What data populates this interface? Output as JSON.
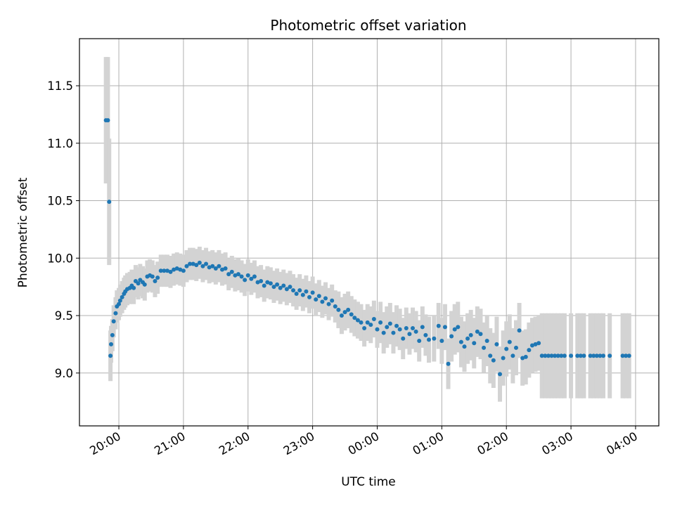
{
  "chart_data": {
    "type": "scatter",
    "title": "Photometric offset variation",
    "xlabel": "UTC time",
    "ylabel": "Photometric offset",
    "x_unit": "hours (UTC, continuing past midnight: 24 = 00:00 next day)",
    "xlim": [
      19.39,
      28.36
    ],
    "ylim": [
      8.54,
      11.91
    ],
    "x_ticks": [
      20,
      21,
      22,
      23,
      24,
      25,
      26,
      27,
      28
    ],
    "x_tick_labels": [
      "20:00",
      "21:00",
      "22:00",
      "23:00",
      "00:00",
      "01:00",
      "02:00",
      "03:00",
      "04:00"
    ],
    "y_ticks": [
      9.0,
      9.5,
      10.0,
      10.5,
      11.0,
      11.5
    ],
    "y_tick_labels": [
      "9.0",
      "9.5",
      "10.0",
      "10.5",
      "11.0",
      "11.5"
    ],
    "grid": true,
    "colors": {
      "points": "#1f77b4",
      "error_bars": "#d3d3d3"
    },
    "series": [
      {
        "values_note": "each point: [x_hours, y, y_error]",
        "points": [
          [
            19.8,
            11.2,
            0.55
          ],
          [
            19.83,
            11.2,
            0.55
          ],
          [
            19.85,
            10.49,
            0.55
          ],
          [
            19.87,
            9.15,
            0.22
          ],
          [
            19.88,
            9.25,
            0.16
          ],
          [
            19.9,
            9.33,
            0.14
          ],
          [
            19.92,
            9.45,
            0.14
          ],
          [
            19.95,
            9.52,
            0.14
          ],
          [
            19.97,
            9.58,
            0.14
          ],
          [
            20.0,
            9.6,
            0.14
          ],
          [
            20.02,
            9.63,
            0.14
          ],
          [
            20.05,
            9.66,
            0.14
          ],
          [
            20.08,
            9.69,
            0.14
          ],
          [
            20.1,
            9.71,
            0.14
          ],
          [
            20.13,
            9.73,
            0.14
          ],
          [
            20.17,
            9.74,
            0.14
          ],
          [
            20.2,
            9.76,
            0.14
          ],
          [
            20.23,
            9.74,
            0.14
          ],
          [
            20.26,
            9.8,
            0.14
          ],
          [
            20.3,
            9.78,
            0.14
          ],
          [
            20.33,
            9.81,
            0.14
          ],
          [
            20.37,
            9.79,
            0.14
          ],
          [
            20.4,
            9.77,
            0.14
          ],
          [
            20.44,
            9.84,
            0.14
          ],
          [
            20.48,
            9.85,
            0.14
          ],
          [
            20.52,
            9.84,
            0.14
          ],
          [
            20.56,
            9.8,
            0.14
          ],
          [
            20.6,
            9.83,
            0.14
          ],
          [
            20.65,
            9.89,
            0.14
          ],
          [
            20.7,
            9.89,
            0.14
          ],
          [
            20.75,
            9.89,
            0.14
          ],
          [
            20.8,
            9.88,
            0.14
          ],
          [
            20.85,
            9.9,
            0.14
          ],
          [
            20.9,
            9.91,
            0.14
          ],
          [
            20.95,
            9.9,
            0.14
          ],
          [
            21.0,
            9.89,
            0.14
          ],
          [
            21.05,
            9.93,
            0.14
          ],
          [
            21.1,
            9.95,
            0.14
          ],
          [
            21.15,
            9.95,
            0.14
          ],
          [
            21.2,
            9.94,
            0.14
          ],
          [
            21.25,
            9.96,
            0.14
          ],
          [
            21.3,
            9.93,
            0.14
          ],
          [
            21.35,
            9.95,
            0.14
          ],
          [
            21.4,
            9.92,
            0.14
          ],
          [
            21.45,
            9.93,
            0.14
          ],
          [
            21.5,
            9.91,
            0.14
          ],
          [
            21.55,
            9.93,
            0.14
          ],
          [
            21.6,
            9.9,
            0.14
          ],
          [
            21.65,
            9.91,
            0.14
          ],
          [
            21.7,
            9.86,
            0.14
          ],
          [
            21.75,
            9.88,
            0.14
          ],
          [
            21.8,
            9.85,
            0.14
          ],
          [
            21.85,
            9.86,
            0.14
          ],
          [
            21.9,
            9.84,
            0.14
          ],
          [
            21.95,
            9.81,
            0.14
          ],
          [
            22.0,
            9.85,
            0.14
          ],
          [
            22.05,
            9.82,
            0.14
          ],
          [
            22.1,
            9.84,
            0.14
          ],
          [
            22.15,
            9.79,
            0.14
          ],
          [
            22.2,
            9.8,
            0.14
          ],
          [
            22.25,
            9.76,
            0.14
          ],
          [
            22.3,
            9.79,
            0.14
          ],
          [
            22.35,
            9.78,
            0.14
          ],
          [
            22.4,
            9.75,
            0.14
          ],
          [
            22.45,
            9.77,
            0.14
          ],
          [
            22.5,
            9.74,
            0.14
          ],
          [
            22.55,
            9.76,
            0.14
          ],
          [
            22.6,
            9.73,
            0.14
          ],
          [
            22.65,
            9.75,
            0.14
          ],
          [
            22.7,
            9.72,
            0.14
          ],
          [
            22.75,
            9.69,
            0.14
          ],
          [
            22.8,
            9.72,
            0.14
          ],
          [
            22.85,
            9.68,
            0.14
          ],
          [
            22.9,
            9.71,
            0.14
          ],
          [
            22.95,
            9.66,
            0.14
          ],
          [
            23.0,
            9.7,
            0.14
          ],
          [
            23.05,
            9.64,
            0.14
          ],
          [
            23.1,
            9.67,
            0.14
          ],
          [
            23.15,
            9.62,
            0.14
          ],
          [
            23.2,
            9.65,
            0.14
          ],
          [
            23.25,
            9.6,
            0.14
          ],
          [
            23.3,
            9.63,
            0.14
          ],
          [
            23.35,
            9.58,
            0.14
          ],
          [
            23.4,
            9.55,
            0.16
          ],
          [
            23.45,
            9.5,
            0.16
          ],
          [
            23.5,
            9.53,
            0.16
          ],
          [
            23.55,
            9.55,
            0.16
          ],
          [
            23.6,
            9.51,
            0.16
          ],
          [
            23.65,
            9.48,
            0.16
          ],
          [
            23.7,
            9.46,
            0.16
          ],
          [
            23.75,
            9.44,
            0.16
          ],
          [
            23.8,
            9.39,
            0.16
          ],
          [
            23.85,
            9.44,
            0.16
          ],
          [
            23.9,
            9.42,
            0.16
          ],
          [
            23.95,
            9.47,
            0.16
          ],
          [
            24.0,
            9.38,
            0.16
          ],
          [
            24.05,
            9.44,
            0.18
          ],
          [
            24.1,
            9.35,
            0.18
          ],
          [
            24.15,
            9.4,
            0.18
          ],
          [
            24.2,
            9.43,
            0.18
          ],
          [
            24.25,
            9.35,
            0.18
          ],
          [
            24.3,
            9.41,
            0.18
          ],
          [
            24.35,
            9.38,
            0.18
          ],
          [
            24.4,
            9.3,
            0.18
          ],
          [
            24.45,
            9.39,
            0.18
          ],
          [
            24.5,
            9.34,
            0.18
          ],
          [
            24.55,
            9.39,
            0.18
          ],
          [
            24.6,
            9.36,
            0.18
          ],
          [
            24.65,
            9.28,
            0.18
          ],
          [
            24.7,
            9.4,
            0.18
          ],
          [
            24.75,
            9.33,
            0.18
          ],
          [
            24.8,
            9.29,
            0.2
          ],
          [
            24.88,
            9.3,
            0.2
          ],
          [
            24.95,
            9.41,
            0.2
          ],
          [
            25.0,
            9.28,
            0.2
          ],
          [
            25.05,
            9.4,
            0.2
          ],
          [
            25.1,
            9.08,
            0.22
          ],
          [
            25.15,
            9.32,
            0.22
          ],
          [
            25.2,
            9.38,
            0.22
          ],
          [
            25.25,
            9.4,
            0.22
          ],
          [
            25.3,
            9.27,
            0.22
          ],
          [
            25.35,
            9.23,
            0.22
          ],
          [
            25.4,
            9.3,
            0.22
          ],
          [
            25.45,
            9.33,
            0.22
          ],
          [
            25.5,
            9.26,
            0.22
          ],
          [
            25.55,
            9.36,
            0.22
          ],
          [
            25.6,
            9.34,
            0.22
          ],
          [
            25.65,
            9.22,
            0.22
          ],
          [
            25.7,
            9.28,
            0.22
          ],
          [
            25.75,
            9.15,
            0.24
          ],
          [
            25.8,
            9.11,
            0.24
          ],
          [
            25.85,
            9.25,
            0.24
          ],
          [
            25.9,
            8.99,
            0.24
          ],
          [
            25.95,
            9.13,
            0.24
          ],
          [
            26.0,
            9.21,
            0.24
          ],
          [
            26.05,
            9.27,
            0.24
          ],
          [
            26.1,
            9.15,
            0.24
          ],
          [
            26.15,
            9.22,
            0.24
          ],
          [
            26.2,
            9.37,
            0.24
          ],
          [
            26.25,
            9.13,
            0.24
          ],
          [
            26.3,
            9.14,
            0.24
          ],
          [
            26.35,
            9.2,
            0.24
          ],
          [
            26.4,
            9.24,
            0.24
          ],
          [
            26.45,
            9.25,
            0.24
          ],
          [
            26.5,
            9.26,
            0.24
          ],
          [
            26.55,
            9.15,
            0.37
          ],
          [
            26.6,
            9.15,
            0.37
          ],
          [
            26.65,
            9.15,
            0.37
          ],
          [
            26.7,
            9.15,
            0.37
          ],
          [
            26.75,
            9.15,
            0.37
          ],
          [
            26.8,
            9.15,
            0.37
          ],
          [
            26.85,
            9.15,
            0.37
          ],
          [
            26.9,
            9.15,
            0.37
          ],
          [
            27.0,
            9.15,
            0.37
          ],
          [
            27.1,
            9.15,
            0.37
          ],
          [
            27.15,
            9.15,
            0.37
          ],
          [
            27.2,
            9.15,
            0.37
          ],
          [
            27.3,
            9.15,
            0.37
          ],
          [
            27.35,
            9.15,
            0.37
          ],
          [
            27.4,
            9.15,
            0.37
          ],
          [
            27.45,
            9.15,
            0.37
          ],
          [
            27.5,
            9.15,
            0.37
          ],
          [
            27.6,
            9.15,
            0.37
          ],
          [
            27.8,
            9.15,
            0.37
          ],
          [
            27.85,
            9.15,
            0.37
          ],
          [
            27.9,
            9.15,
            0.37
          ]
        ]
      }
    ]
  }
}
